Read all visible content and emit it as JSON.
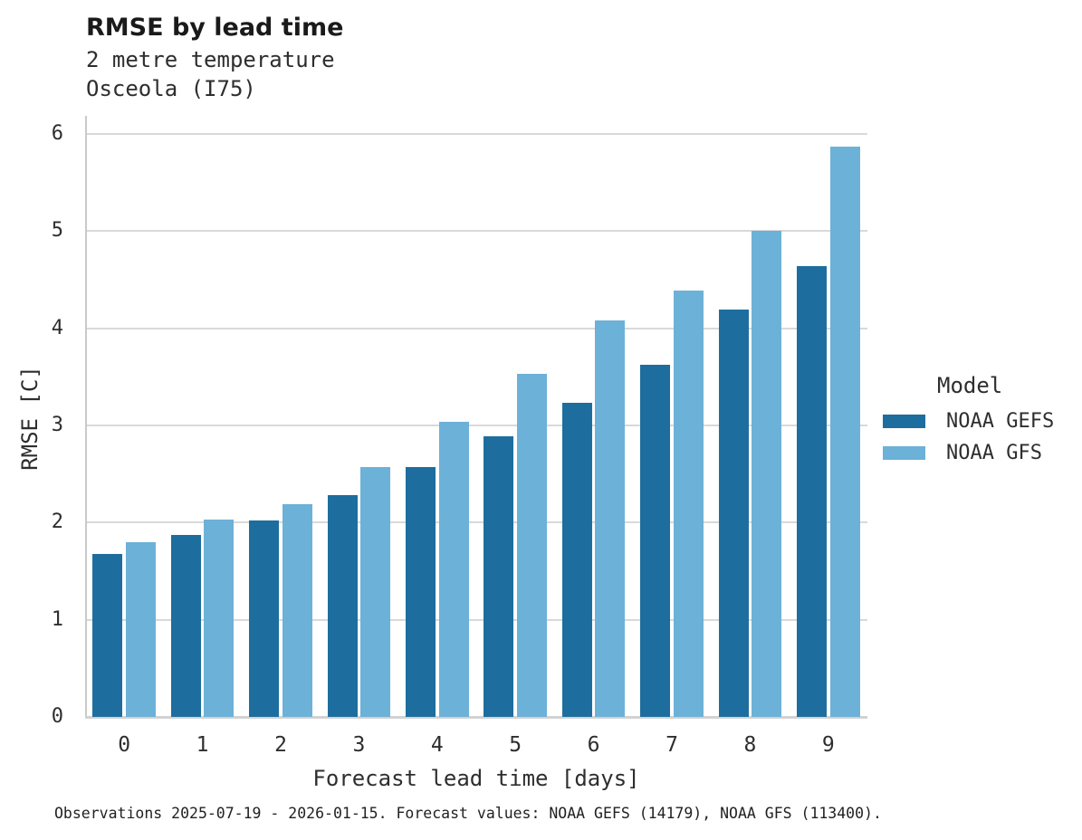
{
  "header": {
    "title": "RMSE by lead time",
    "subtitle_line1": "2 metre temperature",
    "subtitle_line2": "Osceola (I75)"
  },
  "legend": {
    "title": "Model",
    "items": [
      {
        "label": "NOAA GEFS",
        "color": "#1d6e9e"
      },
      {
        "label": "NOAA GFS",
        "color": "#6cb1d8"
      }
    ]
  },
  "caption": "Observations 2025-07-19 - 2026-01-15. Forecast values: NOAA GEFS (14179), NOAA GFS (113400).",
  "colors": {
    "gridline": "#d9d9d9",
    "axis_line": "#c9c9c9",
    "title_text": "#1a1a1a",
    "body_text": "#2e2e2e"
  },
  "chart_data": {
    "type": "bar",
    "title": "RMSE by lead time",
    "subtitle": [
      "2 metre temperature",
      "Osceola (I75)"
    ],
    "categories": [
      0,
      1,
      2,
      3,
      4,
      5,
      6,
      7,
      8,
      9
    ],
    "series": [
      {
        "name": "NOAA GEFS",
        "color": "#1d6e9e",
        "values": [
          1.68,
          1.87,
          2.02,
          2.28,
          2.57,
          2.89,
          3.23,
          3.62,
          4.19,
          4.64
        ]
      },
      {
        "name": "NOAA GFS",
        "color": "#6cb1d8",
        "values": [
          1.8,
          2.03,
          2.19,
          2.57,
          3.04,
          3.53,
          4.08,
          4.39,
          5.0,
          5.87
        ]
      }
    ],
    "xlabel": "Forecast lead time [days]",
    "ylabel": "RMSE [C]",
    "ylim": [
      0,
      6
    ],
    "yticks": [
      0,
      1,
      2,
      3,
      4,
      5,
      6
    ],
    "grid": true,
    "legend_position": "right",
    "legend_title": "Model"
  }
}
